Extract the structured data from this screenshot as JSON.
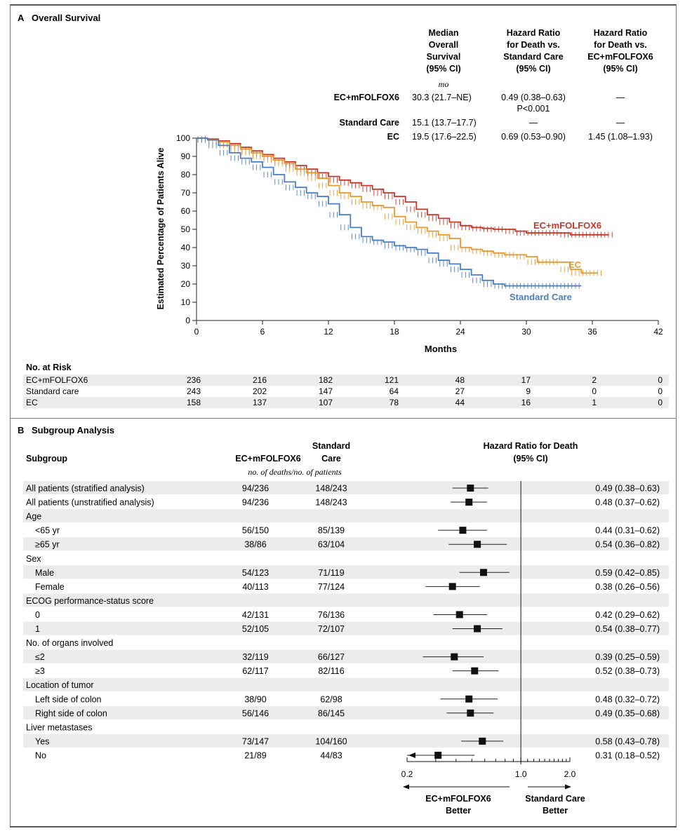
{
  "panelA": {
    "letter": "A",
    "title": "Overall Survival",
    "table_headers": {
      "median": [
        "Median",
        "Overall",
        "Survival",
        "(95% CI)"
      ],
      "hr_sc": [
        "Hazard Ratio",
        "for Death vs.",
        "Standard Care",
        "(95% CI)"
      ],
      "hr_ec": [
        "Hazard Ratio",
        "for Death vs.",
        "EC+mFOLFOX6",
        "(95% CI)"
      ],
      "unit": "mo"
    },
    "table_rows": [
      {
        "name": "EC+mFOLFOX6",
        "median": "30.3 (21.7–NE)",
        "hr_sc": "0.49 (0.38–0.63)",
        "hr_sc2": "P<0.001",
        "hr_ec": "—"
      },
      {
        "name": "Standard Care",
        "median": "15.1 (13.7–17.7)",
        "hr_sc": "—",
        "hr_sc2": "",
        "hr_ec": "—"
      },
      {
        "name": "EC",
        "median": "19.5 (17.6–22.5)",
        "hr_sc": "0.69 (0.53–0.90)",
        "hr_sc2": "",
        "hr_ec": "1.45 (1.08–1.93)"
      }
    ],
    "risk": {
      "title": "No. at Risk",
      "rows": [
        {
          "name": "EC+mFOLFOX6",
          "values": [
            "236",
            "216",
            "182",
            "121",
            "48",
            "17",
            "2",
            "0"
          ]
        },
        {
          "name": "Standard care",
          "values": [
            "243",
            "202",
            "147",
            "64",
            "27",
            "9",
            "0",
            "0"
          ]
        },
        {
          "name": "EC",
          "values": [
            "158",
            "137",
            "107",
            "78",
            "44",
            "16",
            "1",
            "0"
          ]
        }
      ]
    }
  },
  "panelB": {
    "letter": "B",
    "title": "Subgroup Analysis",
    "col_subgroup": "Subgroup",
    "col_ec": "EC+mFOLFOX6",
    "col_sc": [
      "Standard",
      "Care"
    ],
    "col_sub": "no. of deaths/no. of patients",
    "col_hr": [
      "Hazard Ratio for Death",
      "(95% CI)"
    ],
    "axis_ticks": [
      "0.2",
      "1.0",
      "2.0"
    ],
    "better_left": [
      "EC+mFOLFOX6",
      "Better"
    ],
    "better_right": [
      "Standard Care",
      "Better"
    ]
  },
  "colors": {
    "ec_mfolfox6": "#c0392b",
    "ec": "#e69a2e",
    "standard_care": "#4a7fc1",
    "shade": "#ececec"
  },
  "chart_data": [
    {
      "type": "line",
      "title": "Overall Survival",
      "xlabel": "Months",
      "ylabel": "Estimated Percentage of Patients Alive",
      "xlim": [
        0,
        42
      ],
      "ylim": [
        0,
        100
      ],
      "xticks": [
        "0",
        "6",
        "12",
        "18",
        "24",
        "30",
        "36",
        "42"
      ],
      "yticks": [
        "0",
        "10",
        "20",
        "30",
        "40",
        "50",
        "60",
        "70",
        "80",
        "90",
        "100"
      ],
      "series": [
        {
          "name": "EC+mFOLFOX6",
          "x": [
            0,
            1,
            2,
            3,
            4,
            5,
            6,
            7,
            8,
            9,
            10,
            11,
            12,
            13,
            14,
            15,
            16,
            17,
            18,
            19,
            20,
            21,
            22,
            23,
            24,
            25,
            26,
            27,
            28,
            29,
            30,
            31,
            32,
            33,
            34,
            35,
            36,
            37,
            37.5
          ],
          "y": [
            100,
            99.5,
            98.5,
            97,
            95,
            93,
            91,
            89,
            87,
            85,
            83,
            81,
            79,
            77,
            75.5,
            74,
            72,
            70,
            68,
            65,
            61,
            58,
            56,
            54,
            52,
            51,
            50.5,
            50,
            50,
            49,
            48,
            48,
            48,
            48,
            47,
            47,
            47,
            47,
            47
          ]
        },
        {
          "name": "EC",
          "x": [
            0,
            1,
            2,
            3,
            4,
            5,
            6,
            7,
            8,
            9,
            10,
            11,
            12,
            13,
            14,
            15,
            16,
            17,
            18,
            19,
            20,
            21,
            22,
            23,
            24,
            25,
            26,
            27,
            28,
            29,
            30,
            31,
            32,
            33,
            34,
            35,
            36,
            36.5
          ],
          "y": [
            100,
            99,
            98,
            96,
            94,
            92,
            90,
            88,
            86,
            83,
            81,
            78,
            74,
            70,
            68,
            65,
            63,
            62,
            57,
            54,
            51,
            49,
            47,
            45,
            40,
            39,
            38,
            37,
            36,
            36,
            35,
            32,
            32,
            32,
            28,
            26,
            26,
            26
          ]
        },
        {
          "name": "Standard Care",
          "x": [
            0,
            1,
            2,
            3,
            4,
            5,
            6,
            7,
            8,
            9,
            10,
            11,
            12,
            13,
            14,
            15,
            16,
            17,
            18,
            19,
            20,
            21,
            22,
            23,
            24,
            25,
            26,
            27,
            28,
            29,
            30,
            31,
            32,
            33,
            34,
            35
          ],
          "y": [
            100,
            99,
            96,
            92,
            89,
            87,
            84,
            80,
            76,
            73,
            70,
            68,
            64,
            58,
            51,
            46,
            44,
            43,
            41,
            40,
            39,
            37,
            33,
            31,
            28,
            25,
            22,
            20,
            19,
            19,
            19,
            19,
            19,
            19,
            19,
            19
          ]
        }
      ],
      "series_labels": [
        "EC+mFOLFOX6",
        "EC",
        "Standard Care"
      ]
    },
    {
      "type": "scatter",
      "title": "Hazard Ratio for Death",
      "scale": "log",
      "reference": 1.0,
      "xlim": [
        0.2,
        2.0
      ],
      "rows": [
        {
          "label": "All patients (stratified analysis)",
          "indent": 0,
          "ec": "94/236",
          "sc": "148/243",
          "hr": 0.49,
          "lo": 0.38,
          "hi": 0.63,
          "ci": "0.49 (0.38–0.63)"
        },
        {
          "label": "All patients (unstratified analysis)",
          "indent": 0,
          "ec": "94/236",
          "sc": "148/243",
          "hr": 0.48,
          "lo": 0.37,
          "hi": 0.62,
          "ci": "0.48 (0.37–0.62)"
        },
        {
          "label": "Age",
          "indent": 0,
          "header": true
        },
        {
          "label": "<65 yr",
          "indent": 1,
          "ec": "56/150",
          "sc": "85/139",
          "hr": 0.44,
          "lo": 0.31,
          "hi": 0.62,
          "ci": "0.44 (0.31–0.62)"
        },
        {
          "label": "≥65 yr",
          "indent": 1,
          "ec": "38/86",
          "sc": "63/104",
          "hr": 0.54,
          "lo": 0.36,
          "hi": 0.82,
          "ci": "0.54 (0.36–0.82)"
        },
        {
          "label": "Sex",
          "indent": 0,
          "header": true
        },
        {
          "label": "Male",
          "indent": 1,
          "ec": "54/123",
          "sc": "71/119",
          "hr": 0.59,
          "lo": 0.42,
          "hi": 0.85,
          "ci": "0.59 (0.42–0.85)"
        },
        {
          "label": "Female",
          "indent": 1,
          "ec": "40/113",
          "sc": "77/124",
          "hr": 0.38,
          "lo": 0.26,
          "hi": 0.56,
          "ci": "0.38 (0.26–0.56)"
        },
        {
          "label": "ECOG performance-status score",
          "indent": 0,
          "header": true
        },
        {
          "label": "0",
          "indent": 1,
          "ec": "42/131",
          "sc": "76/136",
          "hr": 0.42,
          "lo": 0.29,
          "hi": 0.62,
          "ci": "0.42 (0.29–0.62)"
        },
        {
          "label": "1",
          "indent": 1,
          "ec": "52/105",
          "sc": "72/107",
          "hr": 0.54,
          "lo": 0.38,
          "hi": 0.77,
          "ci": "0.54 (0.38–0.77)"
        },
        {
          "label": "No. of organs involved",
          "indent": 0,
          "header": true
        },
        {
          "label": "≤2",
          "indent": 1,
          "ec": "32/119",
          "sc": "66/127",
          "hr": 0.39,
          "lo": 0.25,
          "hi": 0.59,
          "ci": "0.39 (0.25–0.59)"
        },
        {
          "label": "≥3",
          "indent": 1,
          "ec": "62/117",
          "sc": "82/116",
          "hr": 0.52,
          "lo": 0.38,
          "hi": 0.73,
          "ci": "0.52 (0.38–0.73)"
        },
        {
          "label": "Location of tumor",
          "indent": 0,
          "header": true
        },
        {
          "label": "Left side of colon",
          "indent": 1,
          "ec": "38/90",
          "sc": "62/98",
          "hr": 0.48,
          "lo": 0.32,
          "hi": 0.72,
          "ci": "0.48 (0.32–0.72)"
        },
        {
          "label": "Right side of colon",
          "indent": 1,
          "ec": "56/146",
          "sc": "86/145",
          "hr": 0.49,
          "lo": 0.35,
          "hi": 0.68,
          "ci": "0.49 (0.35–0.68)"
        },
        {
          "label": "Liver metastases",
          "indent": 0,
          "header": true
        },
        {
          "label": "Yes",
          "indent": 1,
          "ec": "73/147",
          "sc": "104/160",
          "hr": 0.58,
          "lo": 0.43,
          "hi": 0.78,
          "ci": "0.58 (0.43–0.78)"
        },
        {
          "label": "No",
          "indent": 1,
          "ec": "21/89",
          "sc": "44/83",
          "hr": 0.31,
          "lo": 0.18,
          "hi": 0.52,
          "ci": "0.31 (0.18–0.52)"
        }
      ]
    }
  ]
}
